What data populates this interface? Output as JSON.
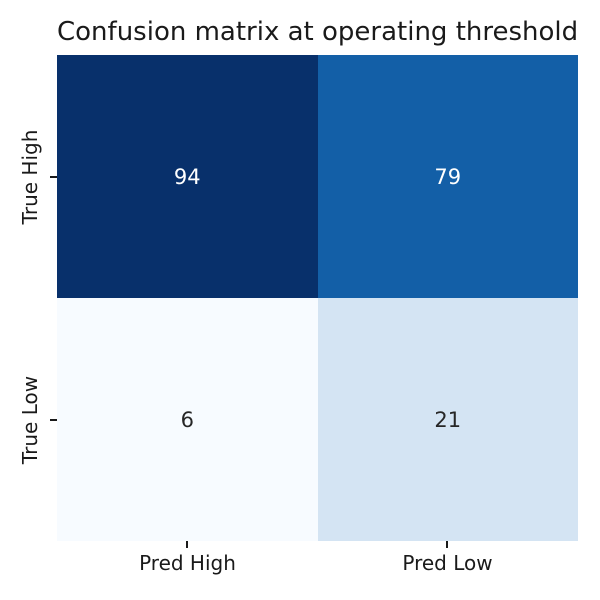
{
  "title": "Confusion matrix at operating threshold",
  "chart_data": {
    "type": "heatmap",
    "title": "Confusion matrix at operating threshold",
    "colormap": "Blues",
    "legend": "none",
    "grid": false,
    "x_tick_labels": [
      "Pred High",
      "Pred Low"
    ],
    "y_tick_labels": [
      "True High",
      "True Low"
    ],
    "rows": [
      [
        94,
        79
      ],
      [
        6,
        21
      ]
    ],
    "cells": [
      {
        "row": "True High",
        "col": "Pred High",
        "value": "94",
        "color": "#08306b",
        "text_color": "#ffffff"
      },
      {
        "row": "True High",
        "col": "Pred Low",
        "value": "79",
        "color": "#135fa7",
        "text_color": "#ffffff"
      },
      {
        "row": "True Low",
        "col": "Pred High",
        "value": "6",
        "color": "#f7fbff",
        "text_color": "#262626"
      },
      {
        "row": "True Low",
        "col": "Pred Low",
        "value": "21",
        "color": "#d4e4f3",
        "text_color": "#262626"
      }
    ],
    "xlabel": "",
    "ylabel": ""
  }
}
